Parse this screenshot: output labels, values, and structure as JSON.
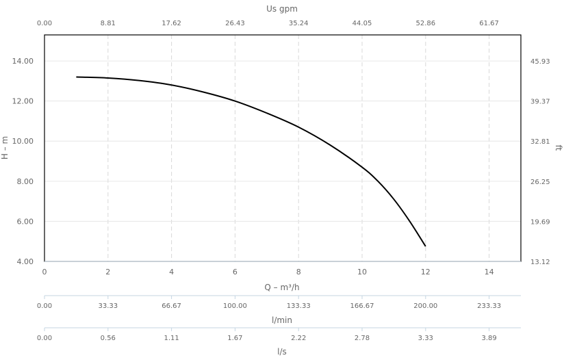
{
  "chart_data": {
    "type": "line",
    "series": [
      {
        "x": [
          1,
          2,
          3,
          4,
          5,
          6,
          7,
          8,
          9,
          10,
          10.5,
          11,
          11.5,
          12
        ],
        "values": [
          13.2,
          13.15,
          13.02,
          12.8,
          12.45,
          12.0,
          11.4,
          10.7,
          9.8,
          8.7,
          8.0,
          7.1,
          6.0,
          4.75
        ]
      }
    ],
    "xlabel": "Q – m³/h",
    "ylabel": "H – m",
    "xlim": [
      0,
      15
    ],
    "ylim": [
      4,
      15.3
    ],
    "grid": true,
    "x_ticks": [
      "0",
      "2",
      "4",
      "6",
      "8",
      "10",
      "12",
      "14"
    ],
    "y_ticks": [
      "4.00",
      "6.00",
      "8.00",
      "10.00",
      "12.00",
      "14.00"
    ],
    "top_axis": {
      "label": "Us gpm",
      "ticks": [
        "0.00",
        "8.81",
        "17.62",
        "26.43",
        "35.24",
        "44.05",
        "52.86",
        "61.67"
      ]
    },
    "right_axis": {
      "label": "ft",
      "ticks": [
        "13.12",
        "19.69",
        "26.25",
        "32.81",
        "39.37",
        "45.93"
      ]
    },
    "secondary_axes": [
      {
        "label": "l/min",
        "ticks": [
          "0.00",
          "33.33",
          "66.67",
          "100.00",
          "133.33",
          "166.67",
          "200.00",
          "233.33"
        ]
      },
      {
        "label": "l/s",
        "ticks": [
          "0.00",
          "0.56",
          "1.11",
          "1.67",
          "2.22",
          "2.78",
          "3.33",
          "3.89"
        ]
      }
    ]
  }
}
